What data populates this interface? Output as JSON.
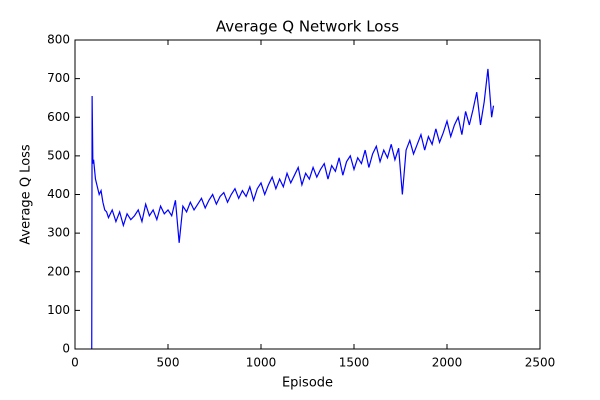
{
  "chart_data": {
    "type": "line",
    "title": "Average Q Network Loss",
    "xlabel": "Episode",
    "ylabel": "Average Q Loss",
    "x": [
      90,
      92,
      96,
      100,
      110,
      120,
      130,
      140,
      150,
      160,
      170,
      180,
      200,
      220,
      240,
      260,
      280,
      300,
      320,
      340,
      360,
      380,
      400,
      420,
      440,
      460,
      480,
      500,
      520,
      540,
      560,
      580,
      600,
      620,
      640,
      660,
      680,
      700,
      720,
      740,
      760,
      780,
      800,
      820,
      840,
      860,
      880,
      900,
      920,
      940,
      960,
      980,
      1000,
      1020,
      1040,
      1060,
      1080,
      1100,
      1120,
      1140,
      1160,
      1180,
      1200,
      1220,
      1240,
      1260,
      1280,
      1300,
      1320,
      1340,
      1360,
      1380,
      1400,
      1420,
      1440,
      1460,
      1480,
      1500,
      1520,
      1540,
      1560,
      1580,
      1600,
      1620,
      1640,
      1660,
      1680,
      1700,
      1720,
      1740,
      1760,
      1780,
      1800,
      1820,
      1840,
      1860,
      1880,
      1900,
      1920,
      1940,
      1960,
      1980,
      2000,
      2020,
      2040,
      2060,
      2080,
      2100,
      2120,
      2140,
      2160,
      2180,
      2200,
      2220,
      2240,
      2250
    ],
    "series": [
      {
        "name": "Average Q Loss",
        "color": "#0000ff",
        "values": [
          0,
          655,
          480,
          490,
          440,
          420,
          400,
          410,
          380,
          360,
          355,
          340,
          360,
          330,
          355,
          320,
          350,
          335,
          345,
          360,
          330,
          375,
          345,
          360,
          335,
          370,
          350,
          360,
          345,
          385,
          275,
          370,
          355,
          380,
          360,
          375,
          390,
          365,
          385,
          400,
          375,
          395,
          405,
          380,
          400,
          415,
          390,
          410,
          395,
          420,
          385,
          415,
          430,
          400,
          425,
          445,
          415,
          440,
          420,
          455,
          430,
          450,
          470,
          425,
          455,
          440,
          470,
          445,
          465,
          480,
          440,
          475,
          460,
          495,
          450,
          485,
          500,
          465,
          495,
          480,
          515,
          470,
          505,
          525,
          485,
          515,
          495,
          530,
          490,
          520,
          400,
          515,
          540,
          505,
          530,
          555,
          515,
          550,
          530,
          570,
          535,
          560,
          590,
          550,
          580,
          600,
          555,
          615,
          580,
          620,
          665,
          580,
          640,
          725,
          600,
          630
        ]
      }
    ],
    "xlim": [
      0,
      2500
    ],
    "xticks": [
      0,
      500,
      1000,
      1500,
      2000,
      2500
    ],
    "ylim": [
      0,
      800
    ],
    "yticks": [
      0,
      100,
      200,
      300,
      400,
      500,
      600,
      700,
      800
    ]
  }
}
